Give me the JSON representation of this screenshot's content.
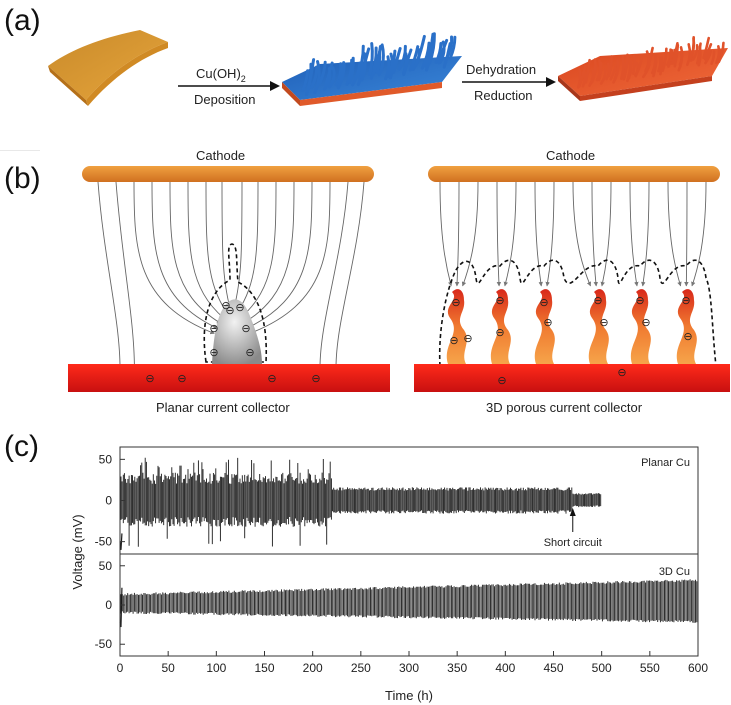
{
  "panels": {
    "a": "(a)",
    "b": "(b)",
    "c": "(c)"
  },
  "panel_a": {
    "step1_top": "Cu(OH)",
    "step1_sub": "2",
    "step1_bottom": "Deposition",
    "step2_top": "Dehydration",
    "step2_bottom": "Reduction"
  },
  "panel_b": {
    "left_cathode": "Cathode",
    "right_cathode": "Cathode",
    "electron_symbol": "⊖",
    "left_caption": "Planar current collector",
    "right_caption": "3D porous current collector"
  },
  "chart_data": {
    "type": "line",
    "xlabel": "Time (h)",
    "ylabel": "Voltage (mV)",
    "x_ticks": [
      0,
      50,
      100,
      150,
      200,
      250,
      300,
      350,
      400,
      450,
      500,
      550,
      600
    ],
    "y_ticks": [
      50,
      0,
      -50
    ],
    "xlim": [
      0,
      600
    ],
    "subplots": [
      {
        "name": "Planar Cu",
        "ylim": [
          -65,
          65
        ],
        "duration_h": 500,
        "annotation": "Short circuit",
        "annotation_x": 470
      },
      {
        "name": "3D Cu",
        "ylim": [
          -65,
          65
        ],
        "duration_h": 600
      }
    ],
    "colors": {
      "trace": "#1a1a1a",
      "axis": "#333333"
    }
  }
}
